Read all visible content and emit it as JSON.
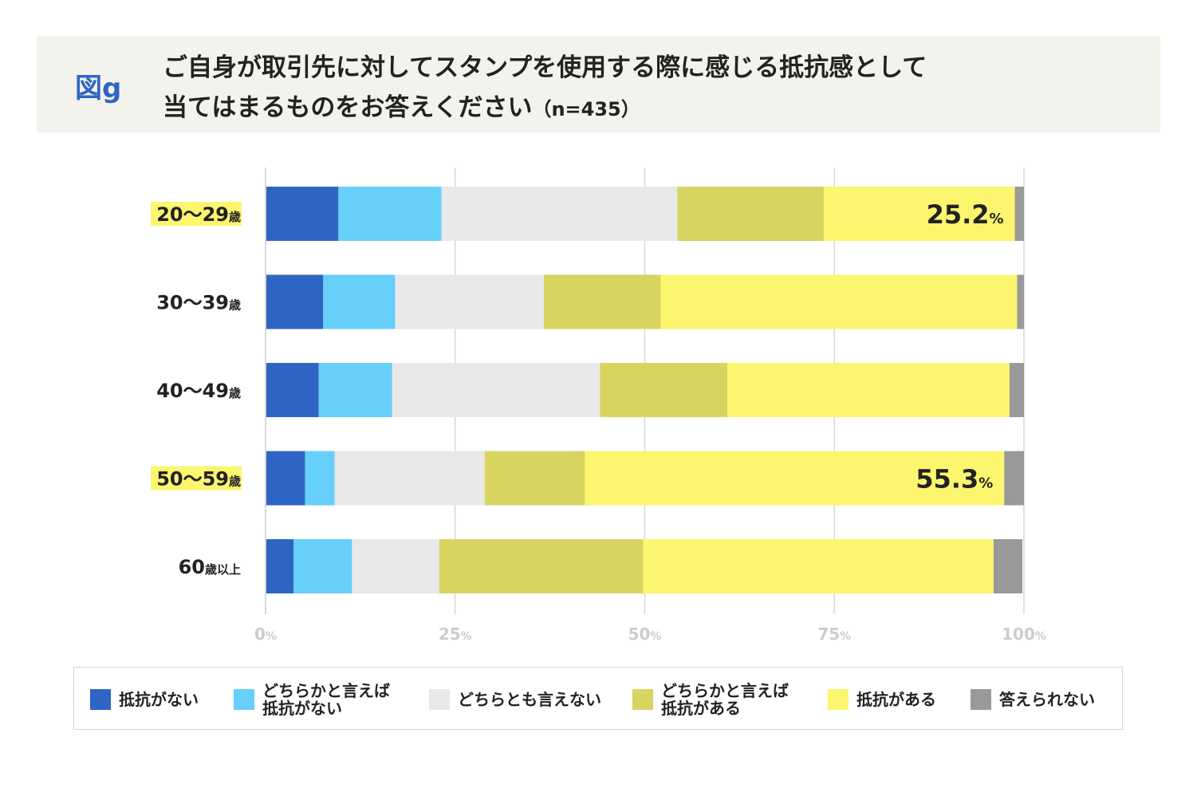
{
  "header": {
    "figure_label": "図g",
    "title_line1": "ご自身が取引先に対してスタンプを使用する際に感じる抵抗感として",
    "title_line2": "当てはまるものをお答えください",
    "sample_size": "（n=435）"
  },
  "colors": {
    "none": "#2e64c4",
    "rather_none": "#66cffa",
    "neutral": "#e8e8e8",
    "rather_some": "#d8d460",
    "some": "#fcf56e",
    "no_answer": "#999999",
    "highlight": "#fcf56e",
    "grid": "#d9d9d9",
    "axis_tick": "#cccccc"
  },
  "chart_data": {
    "type": "bar",
    "orientation": "horizontal",
    "stacked": true,
    "categories": [
      "20〜29歳",
      "30〜39歳",
      "40〜49歳",
      "50〜59歳",
      "60歳以上"
    ],
    "highlighted_categories": [
      0,
      3
    ],
    "series": [
      {
        "name": "抵抗がない",
        "color_key": "none",
        "values": [
          9.6,
          7.6,
          7.0,
          5.2,
          3.7
        ]
      },
      {
        "name": "どちらかと言えば\n抵抗がない",
        "color_key": "rather_none",
        "values": [
          13.6,
          9.5,
          9.7,
          3.9,
          7.7
        ]
      },
      {
        "name": "どちらとも言えない",
        "color_key": "neutral",
        "values": [
          31.1,
          19.6,
          27.4,
          19.8,
          11.5
        ]
      },
      {
        "name": "どちらかと言えば\n抵抗がある",
        "color_key": "rather_some",
        "values": [
          19.3,
          15.4,
          16.8,
          13.2,
          26.9
        ]
      },
      {
        "name": "抵抗がある",
        "color_key": "some",
        "values": [
          25.2,
          47.0,
          37.2,
          55.3,
          46.2
        ]
      },
      {
        "name": "答えられない",
        "color_key": "no_answer",
        "values": [
          1.2,
          0.9,
          1.9,
          2.6,
          3.8
        ]
      }
    ],
    "data_labels": [
      {
        "category": 0,
        "series": 4,
        "value": "25.2",
        "unit": "%"
      },
      {
        "category": 3,
        "series": 4,
        "value": "55.3",
        "unit": "%"
      }
    ],
    "x_ticks": [
      {
        "value": 0,
        "label": "0",
        "unit": "%"
      },
      {
        "value": 25,
        "label": "25",
        "unit": "%"
      },
      {
        "value": 50,
        "label": "50",
        "unit": "%"
      },
      {
        "value": 75,
        "label": "75",
        "unit": "%"
      },
      {
        "value": 100,
        "label": "100",
        "unit": "%"
      }
    ],
    "xlim": [
      0,
      100
    ],
    "grid": true,
    "legend_position": "bottom"
  }
}
